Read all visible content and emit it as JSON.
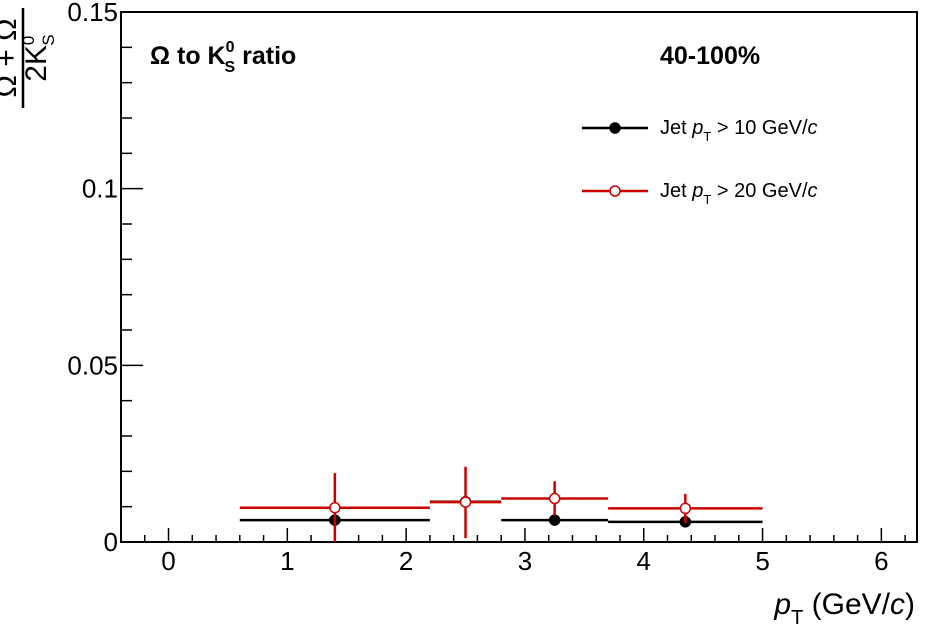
{
  "chart_data": {
    "type": "scatter",
    "title": "Ω to K",
    "title_sup": "0",
    "title_sub": "S",
    "title_tail": " ratio",
    "centrality": "40-100%",
    "xlabel": "p",
    "xlabel_sub": "T",
    "xlabel_unit": " (GeV/",
    "xlabel_unit_it": "c",
    "xlabel_unit_close": ")",
    "ylabel_num": "Ω + Ω",
    "ylabel_den": "2K",
    "ylabel_den_sup": "0",
    "ylabel_den_sub": "S",
    "xlim": [
      -0.4,
      6.3
    ],
    "ylim": [
      0,
      0.15
    ],
    "xticks": [
      0,
      1,
      2,
      3,
      4,
      5,
      6
    ],
    "xtick_labels": [
      "0",
      "1",
      "2",
      "3",
      "4",
      "5",
      "6"
    ],
    "yticks": [
      0,
      0.05,
      0.1,
      0.15
    ],
    "ytick_labels": [
      "0",
      "0.05",
      "0.1",
      "0.15"
    ],
    "legend_position": "top-right",
    "series": [
      {
        "name": "Jet p_T > 10 GeV/c",
        "legend_pre": "Jet ",
        "legend_p": "p",
        "legend_sub": "T",
        "legend_post": " > 10 GeV/",
        "legend_c": "c",
        "color": "#000000",
        "marker": "filled-circle",
        "points": [
          {
            "x": 1.4,
            "xlo": 0.6,
            "xhi": 2.2,
            "y": 0.0062,
            "ylo": 0.0049,
            "yhi": 0.0077
          },
          {
            "x": 2.5,
            "xlo": 2.2,
            "xhi": 2.8,
            "y": 0.0114,
            "ylo": 0.0101,
            "yhi": 0.0127
          },
          {
            "x": 3.25,
            "xlo": 2.8,
            "xhi": 3.7,
            "y": 0.0062,
            "ylo": 0.0049,
            "yhi": 0.0077
          },
          {
            "x": 4.35,
            "xlo": 3.7,
            "xhi": 5.0,
            "y": 0.0057,
            "ylo": 0.0045,
            "yhi": 0.007
          }
        ]
      },
      {
        "name": "Jet p_T > 20 GeV/c",
        "legend_pre": "Jet ",
        "legend_p": "p",
        "legend_sub": "T",
        "legend_post": " > 20 GeV/",
        "legend_c": "c",
        "color": "#cc0000",
        "marker": "open-circle",
        "points": [
          {
            "x": 1.4,
            "xlo": 0.6,
            "xhi": 2.2,
            "y": 0.0097,
            "ylo": 0.0,
            "yhi": 0.0195
          },
          {
            "x": 2.5,
            "xlo": 2.2,
            "xhi": 2.8,
            "y": 0.0113,
            "ylo": 0.0011,
            "yhi": 0.0213
          },
          {
            "x": 3.25,
            "xlo": 2.8,
            "xhi": 3.7,
            "y": 0.0123,
            "ylo": 0.0075,
            "yhi": 0.0172
          },
          {
            "x": 4.35,
            "xlo": 3.7,
            "xhi": 5.0,
            "y": 0.0095,
            "ylo": 0.0054,
            "yhi": 0.0136
          }
        ]
      }
    ]
  }
}
